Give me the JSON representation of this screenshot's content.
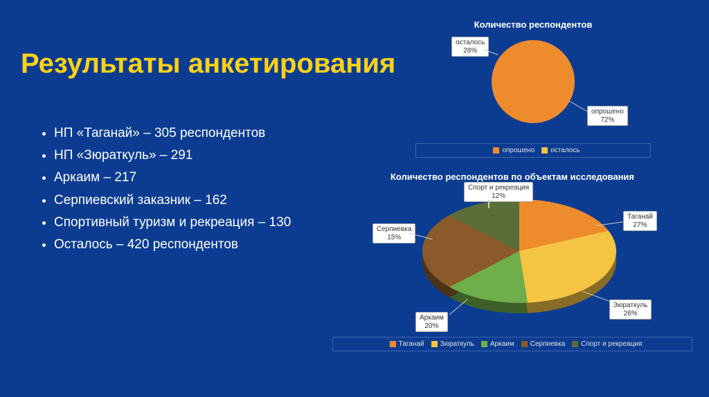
{
  "background_color": "#0c3c92",
  "title": {
    "text": "Результаты анкетирования",
    "color": "#fcd116",
    "fontsize": 40
  },
  "bullets": {
    "items": [
      "НП «Таганай» – 305 респондентов",
      "НП «Зюраткуль» – 291",
      "Аркаим – 217",
      "Серпиевский заказник – 162",
      "Спортивный туризм и рекреация – 130",
      "Осталось – 420 респондентов"
    ],
    "fontsize": 19,
    "color": "#ffffff"
  },
  "chart1": {
    "type": "pie",
    "title": "Количество респондентов",
    "title_fontsize": 13,
    "slices": [
      {
        "label": "опрошено",
        "percent": 72,
        "color": "#ee8c2d"
      },
      {
        "label": "осталось",
        "percent": 28,
        "color": "#f5c443"
      }
    ],
    "callouts": [
      {
        "label": "осталось",
        "value": "28%"
      },
      {
        "label": "опрошено",
        "value": "72%"
      }
    ],
    "legend_items": [
      {
        "label": "опрошено",
        "color": "#ee8c2d"
      },
      {
        "label": "осталось",
        "color": "#f5c443"
      }
    ]
  },
  "chart2": {
    "type": "pie-3d",
    "title": "Количество респондентов по объектам исследования",
    "title_fontsize": 13,
    "slices": [
      {
        "label": "Таганай",
        "percent": 27,
        "color": "#ee8c2d"
      },
      {
        "label": "Зюраткуль",
        "percent": 26,
        "color": "#f5c443"
      },
      {
        "label": "Аркаим",
        "percent": 20,
        "color": "#6fae4a"
      },
      {
        "label": "Серпиевка",
        "percent": 15,
        "color": "#8a5a2a"
      },
      {
        "label": "Спорт и рекреация",
        "percent": 12,
        "color": "#5a6f38"
      }
    ],
    "callouts": [
      {
        "label": "Таганай",
        "value": "27%"
      },
      {
        "label": "Зюраткуль",
        "value": "26%"
      },
      {
        "label": "Аркаим",
        "value": "20%"
      },
      {
        "label": "Серпиевка",
        "value": "15%"
      },
      {
        "label": "Спорт и рекреация",
        "value": "12%"
      }
    ],
    "legend_items": [
      {
        "label": "Таганай",
        "color": "#ee8c2d"
      },
      {
        "label": "Зюраткуль",
        "color": "#f5c443"
      },
      {
        "label": "Аркаим",
        "color": "#6fae4a"
      },
      {
        "label": "Серпиевка",
        "color": "#8a5a2a"
      },
      {
        "label": "Спорт и рекреация",
        "color": "#5a6f38"
      }
    ]
  }
}
